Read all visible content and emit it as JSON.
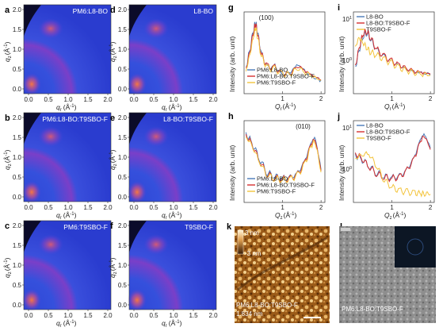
{
  "figure": {
    "panels": {
      "a": {
        "label": "a",
        "title": "PM6:L8-BO"
      },
      "b": {
        "label": "b",
        "title": "PM6:L8-BO:T9SBO-F"
      },
      "c": {
        "label": "c",
        "title": "PM6:T9SBO-F"
      },
      "d": {
        "label": "d",
        "title": "L8-BO"
      },
      "e": {
        "label": "e",
        "title": "L8-BO:T9SBO-F"
      },
      "f": {
        "label": "f",
        "title": "T9SBO-F"
      },
      "g": {
        "label": "g"
      },
      "h": {
        "label": "h"
      },
      "i": {
        "label": "i"
      },
      "j": {
        "label": "j"
      },
      "k": {
        "label": "k",
        "caption": "PM6:L8-BO:T9SBO-F",
        "rms": "1.834 nm",
        "scale_max": "3 nm",
        "scale_min": "-3 nm"
      },
      "l": {
        "label": "l",
        "caption": "PM6:L8-BO:T9SBO-F"
      }
    },
    "giwaxs": {
      "yticks": [
        "0.0",
        "0.5",
        "1.0",
        "1.5",
        "2.0"
      ],
      "xticks": [
        "0.0",
        "0.5",
        "1.0",
        "1.5",
        "2.0"
      ],
      "ylabel_main": "q",
      "ylabel_sub": "z",
      "ylabel_unit": "(Å",
      "ylabel_sup": "-1",
      "ylabel_close": ")",
      "xlabel_main": "q",
      "xlabel_sub": "r",
      "xlabel_unit": "(Å",
      "xlabel_sup": "-1",
      "xlabel_close": ")"
    },
    "profiles": {
      "ylabel": "Intensity (arb. unit)",
      "xlabel_main": "Q",
      "xlabel_sub_g": "r",
      "xlabel_sub_h": "z",
      "xlabel_sub_i": "r",
      "xlabel_sub_j": "z",
      "xlabel_tail": "(Å",
      "xlabel_sup": "-1",
      "xlabel_close": ")",
      "tick_1": "1",
      "tick_2": "2",
      "tick_10_1": "10",
      "tick_10_1_exp": "1",
      "tick_10_0": "10",
      "tick_10_0_exp": "0",
      "ann_100": "(100)",
      "ann_010": "(010)",
      "legend_blend": [
        "PM6:L8-BO",
        "PM6:L8-BO:T9SBO-F",
        "PM6:T9SBO-F"
      ],
      "legend_neat": [
        "L8-BO",
        "L8-BO:T9SBO-F",
        "T9SBO-F"
      ],
      "colors": [
        "#4a7ab8",
        "#d62f2f",
        "#f3c43c"
      ]
    }
  },
  "chart_data": [
    {
      "type": "line",
      "panel": "g",
      "xlabel": "Qr (Å-1)",
      "ylabel": "Intensity (arb. unit)",
      "xlim": [
        0,
        2.1
      ],
      "annotations": [
        "(100)"
      ],
      "series": [
        {
          "name": "PM6:L8-BO",
          "x": [
            0.05,
            0.15,
            0.25,
            0.3,
            0.35,
            0.45,
            0.6,
            0.8,
            1.0,
            1.2,
            1.4,
            1.6,
            1.8,
            2.0
          ],
          "y": [
            0.3,
            0.55,
            0.85,
            0.95,
            0.8,
            0.5,
            0.3,
            0.32,
            0.2,
            0.24,
            0.35,
            0.24,
            0.16,
            0.12
          ]
        },
        {
          "name": "PM6:L8-BO:T9SBO-F",
          "x": [
            0.05,
            0.15,
            0.25,
            0.3,
            0.35,
            0.45,
            0.6,
            0.8,
            1.0,
            1.2,
            1.4,
            1.6,
            1.8,
            2.0
          ],
          "y": [
            0.28,
            0.52,
            0.82,
            0.93,
            0.78,
            0.48,
            0.32,
            0.3,
            0.22,
            0.22,
            0.33,
            0.25,
            0.18,
            0.13
          ]
        },
        {
          "name": "PM6:T9SBO-F",
          "x": [
            0.05,
            0.15,
            0.25,
            0.3,
            0.35,
            0.45,
            0.6,
            0.8,
            1.0,
            1.2,
            1.4,
            1.6,
            1.8,
            2.0
          ],
          "y": [
            0.25,
            0.48,
            0.75,
            0.88,
            0.74,
            0.46,
            0.3,
            0.28,
            0.21,
            0.21,
            0.3,
            0.23,
            0.17,
            0.12
          ]
        }
      ]
    },
    {
      "type": "line",
      "panel": "h",
      "xlabel": "Qz (Å-1)",
      "ylabel": "Intensity (arb. unit)",
      "xlim": [
        0,
        2.1
      ],
      "annotations": [
        "(010)"
      ],
      "series": [
        {
          "name": "PM6:L8-BO",
          "x": [
            0.05,
            0.2,
            0.4,
            0.6,
            0.8,
            1.0,
            1.2,
            1.4,
            1.6,
            1.75,
            1.85,
            2.0
          ],
          "y": [
            0.9,
            0.78,
            0.55,
            0.35,
            0.3,
            0.27,
            0.28,
            0.35,
            0.55,
            0.8,
            0.85,
            0.4
          ]
        },
        {
          "name": "PM6:L8-BO:T9SBO-F",
          "x": [
            0.05,
            0.2,
            0.4,
            0.6,
            0.8,
            1.0,
            1.2,
            1.4,
            1.6,
            1.75,
            1.85,
            2.0
          ],
          "y": [
            0.88,
            0.76,
            0.52,
            0.33,
            0.28,
            0.26,
            0.27,
            0.33,
            0.53,
            0.78,
            0.83,
            0.38
          ]
        },
        {
          "name": "PM6:T9SBO-F",
          "x": [
            0.05,
            0.2,
            0.4,
            0.6,
            0.8,
            1.0,
            1.2,
            1.4,
            1.6,
            1.75,
            1.85,
            2.0
          ],
          "y": [
            0.86,
            0.74,
            0.5,
            0.32,
            0.27,
            0.25,
            0.26,
            0.32,
            0.5,
            0.75,
            0.8,
            0.36
          ]
        }
      ]
    },
    {
      "type": "line",
      "panel": "i",
      "xlabel": "Qr (Å-1)",
      "ylabel": "Intensity (arb. unit)",
      "ylog": true,
      "xlim": [
        0,
        2.1
      ],
      "series": [
        {
          "name": "L8-BO",
          "x": [
            0.05,
            0.15,
            0.25,
            0.35,
            0.45,
            0.6,
            0.8,
            1.0,
            1.2,
            1.4,
            1.6,
            1.8,
            2.0
          ],
          "y": [
            0.3,
            0.55,
            0.75,
            0.8,
            0.7,
            0.55,
            0.45,
            0.38,
            0.33,
            0.28,
            0.24,
            0.22,
            0.2
          ]
        },
        {
          "name": "L8-BO:T9SBO-F",
          "x": [
            0.05,
            0.15,
            0.25,
            0.35,
            0.45,
            0.6,
            0.8,
            1.0,
            1.2,
            1.4,
            1.6,
            1.8,
            2.0
          ],
          "y": [
            0.32,
            0.58,
            0.78,
            0.82,
            0.72,
            0.56,
            0.46,
            0.39,
            0.34,
            0.29,
            0.25,
            0.23,
            0.21
          ]
        },
        {
          "name": "T9SBO-F",
          "x": [
            0.05,
            0.15,
            0.25,
            0.35,
            0.45,
            0.6,
            0.8,
            1.0,
            1.2,
            1.4,
            1.6,
            1.8,
            2.0
          ],
          "y": [
            0.6,
            0.72,
            0.65,
            0.58,
            0.52,
            0.48,
            0.42,
            0.36,
            0.3,
            0.26,
            0.23,
            0.21,
            0.19
          ]
        }
      ]
    },
    {
      "type": "line",
      "panel": "j",
      "xlabel": "Qz (Å-1)",
      "ylabel": "Intensity (arb. unit)",
      "ylog": true,
      "xlim": [
        0,
        2.1
      ],
      "series": [
        {
          "name": "L8-BO",
          "x": [
            0.05,
            0.2,
            0.4,
            0.6,
            0.8,
            1.0,
            1.2,
            1.4,
            1.6,
            1.75,
            1.85,
            2.0
          ],
          "y": [
            0.6,
            0.55,
            0.45,
            0.35,
            0.3,
            0.28,
            0.3,
            0.4,
            0.6,
            0.85,
            0.9,
            0.7
          ]
        },
        {
          "name": "L8-BO:T9SBO-F",
          "x": [
            0.05,
            0.2,
            0.4,
            0.6,
            0.8,
            1.0,
            1.2,
            1.4,
            1.6,
            1.75,
            1.85,
            2.0
          ],
          "y": [
            0.62,
            0.56,
            0.44,
            0.34,
            0.29,
            0.27,
            0.29,
            0.39,
            0.58,
            0.82,
            0.88,
            0.68
          ]
        },
        {
          "name": "T9SBO-F",
          "x": [
            0.05,
            0.2,
            0.4,
            0.6,
            0.8,
            1.0,
            1.2,
            1.4,
            1.6,
            1.75,
            1.85,
            2.0
          ],
          "y": [
            0.55,
            0.6,
            0.62,
            0.45,
            0.25,
            0.15,
            0.1,
            0.08,
            0.07,
            0.06,
            0.06,
            0.05
          ]
        }
      ]
    }
  ]
}
